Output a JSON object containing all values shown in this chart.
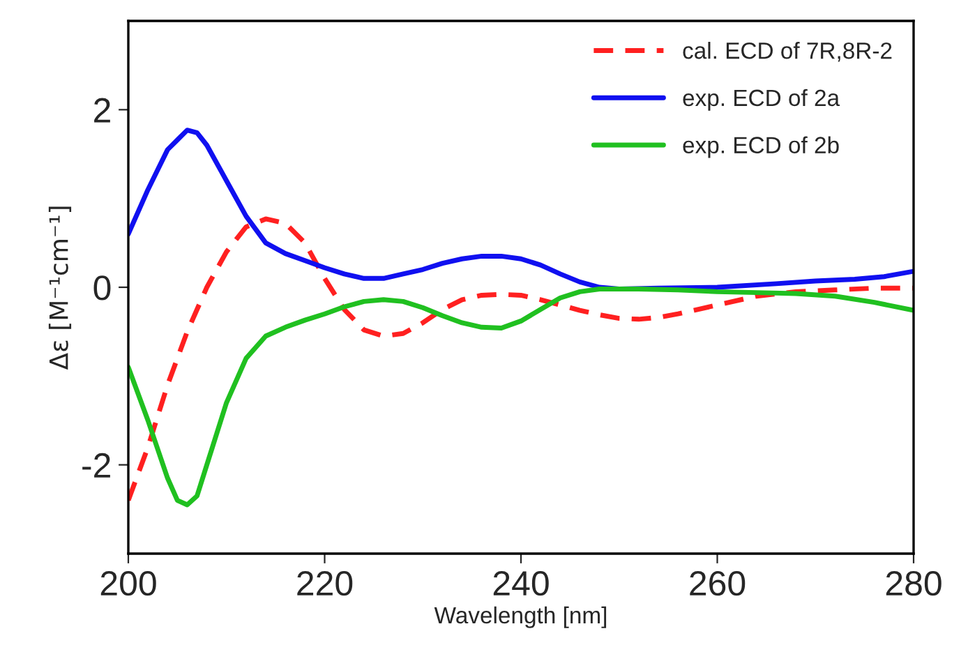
{
  "chart_data": {
    "type": "line",
    "xlabel": "Wavelength [nm]",
    "ylabel": "Δε [M⁻¹cm⁻¹]",
    "xlim": [
      200,
      280
    ],
    "xticks": [
      200,
      220,
      240,
      260,
      280
    ],
    "ylim": [
      -3,
      3
    ],
    "yticks": [
      -2,
      0,
      2
    ],
    "grid": false,
    "legend": "top right",
    "marker": "none",
    "series": [
      {
        "name": "cal. ECD of 7R,8R-2",
        "color": "#ff2020",
        "line_style": "dashed",
        "x": [
          200,
          202,
          204,
          206,
          208,
          210,
          212,
          214,
          216,
          218,
          220,
          222,
          224,
          226,
          228,
          230,
          232,
          234,
          236,
          238,
          240,
          242,
          244,
          246,
          248,
          250,
          252,
          254,
          256,
          258,
          260,
          264,
          268,
          272,
          276,
          280
        ],
        "values": [
          -2.4,
          -1.8,
          -1.1,
          -0.5,
          0.0,
          0.4,
          0.68,
          0.77,
          0.72,
          0.5,
          0.1,
          -0.25,
          -0.48,
          -0.55,
          -0.52,
          -0.4,
          -0.25,
          -0.14,
          -0.09,
          -0.08,
          -0.09,
          -0.14,
          -0.2,
          -0.26,
          -0.31,
          -0.35,
          -0.36,
          -0.34,
          -0.3,
          -0.25,
          -0.2,
          -0.1,
          -0.05,
          -0.03,
          -0.01,
          -0.01
        ]
      },
      {
        "name": "exp. ECD of 2a",
        "color": "#1010f0",
        "line_style": "solid",
        "x": [
          200,
          202,
          204,
          206,
          207,
          208,
          210,
          212,
          214,
          216,
          218,
          220,
          222,
          224,
          226,
          228,
          230,
          232,
          234,
          236,
          238,
          240,
          242,
          244,
          246,
          248,
          250,
          254,
          260,
          266,
          270,
          274,
          277,
          280
        ],
        "values": [
          0.6,
          1.1,
          1.55,
          1.77,
          1.74,
          1.6,
          1.2,
          0.8,
          0.5,
          0.38,
          0.3,
          0.22,
          0.15,
          0.1,
          0.1,
          0.15,
          0.2,
          0.27,
          0.32,
          0.35,
          0.35,
          0.32,
          0.25,
          0.15,
          0.06,
          0.0,
          -0.02,
          -0.01,
          0.0,
          0.04,
          0.07,
          0.09,
          0.12,
          0.18
        ]
      },
      {
        "name": "exp. ECD of 2b",
        "color": "#20c020",
        "line_style": "solid",
        "x": [
          200,
          202,
          204,
          205,
          206,
          207,
          208,
          210,
          212,
          214,
          216,
          218,
          220,
          222,
          224,
          226,
          228,
          230,
          232,
          234,
          236,
          238,
          240,
          242,
          244,
          246,
          248,
          252,
          256,
          260,
          264,
          268,
          272,
          276,
          280
        ],
        "values": [
          -0.9,
          -1.5,
          -2.15,
          -2.4,
          -2.45,
          -2.35,
          -2.0,
          -1.3,
          -0.8,
          -0.55,
          -0.45,
          -0.37,
          -0.3,
          -0.22,
          -0.16,
          -0.14,
          -0.16,
          -0.23,
          -0.32,
          -0.4,
          -0.45,
          -0.46,
          -0.38,
          -0.25,
          -0.12,
          -0.05,
          -0.02,
          -0.02,
          -0.03,
          -0.05,
          -0.06,
          -0.07,
          -0.1,
          -0.17,
          -0.26
        ]
      }
    ]
  }
}
